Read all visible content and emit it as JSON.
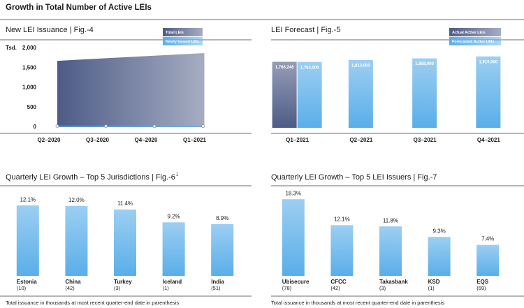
{
  "title": "Growth in Total Number of Active LEIs",
  "chart_data": [
    {
      "type": "area",
      "title": "New LEI Issuance | Fig.-4",
      "y_label": "Tsd.",
      "categories": [
        "Q2–2020",
        "Q3–2020",
        "Q4–2020",
        "Q1–2021"
      ],
      "series": [
        {
          "name": "Total LEIs",
          "color": "#4d5b86",
          "mark": "area",
          "values": [
            1680,
            1745,
            1810,
            1875
          ]
        },
        {
          "name": "Newly Issued LEIs",
          "color": "#5aaee9",
          "mark": "line",
          "values": [
            25,
            22,
            20,
            24
          ]
        }
      ],
      "ylim": [
        0,
        2000
      ],
      "yticks": [
        0,
        500,
        {
          "value": 1000,
          "label": "1,000"
        },
        {
          "value": 1500,
          "label": "1,500"
        },
        {
          "value": 2000,
          "label": "2,000"
        }
      ]
    },
    {
      "type": "bar",
      "title": "LEI Forecast | Fig.-5",
      "categories": [
        "Q1–2021",
        "Q2–2021",
        "Q3–2021",
        "Q4–2021"
      ],
      "series": [
        {
          "name": "Actual Active LEIs",
          "color": "#4d5b86",
          "values": [
            1766248,
            null,
            null,
            null
          ],
          "value_labels": [
            "1,766,248",
            null,
            null,
            null
          ]
        },
        {
          "name": "Forecasted Active LEIs",
          "color": "#5aaee9",
          "values": [
            1763000,
            1813000,
            1858000,
            1910000
          ],
          "value_labels": [
            "1,763,000",
            "1,813,000",
            "1,858,000",
            "1,910,000"
          ]
        }
      ],
      "ylim": [
        0,
        2000000
      ]
    },
    {
      "type": "bar",
      "title": "Quarterly LEI Growth – Top 5 Jurisdictions | Fig.-6",
      "title_note": "1",
      "categories": [
        "Estonia",
        "China",
        "Turkey",
        "Iceland",
        "India"
      ],
      "category_notes": [
        "(10)",
        "(42)",
        "(3)",
        "(1)",
        "(51)"
      ],
      "values": [
        12.1,
        12,
        11.4,
        9.2,
        8.9
      ],
      "value_labels": [
        "12.1%",
        "12.0%",
        "11.4%",
        "9.2%",
        "8.9%"
      ],
      "color": "#5aaee9",
      "ylim": [
        0,
        15
      ],
      "footnote": "Total issuance in thousands at most recent quarter-end date in parenthesis"
    },
    {
      "type": "bar",
      "title": "Quarterly LEI Growth – Top 5 LEI Issuers | Fig.-7",
      "categories": [
        "Ubisecure",
        "CFCC",
        "Takasbank",
        "KSD",
        "EQS"
      ],
      "category_notes": [
        "(78)",
        "(42)",
        "(3)",
        "(1)",
        "(69)"
      ],
      "values": [
        18.3,
        12.1,
        11.8,
        9.3,
        7.4
      ],
      "value_labels": [
        "18.3%",
        "12.1%",
        "11.8%",
        "9.3%",
        "7.4%"
      ],
      "color": "#5aaee9",
      "ylim": [
        0,
        20
      ],
      "footnote": "Total issuance in thousands at most recent quarter-end date in parenthesis"
    }
  ]
}
